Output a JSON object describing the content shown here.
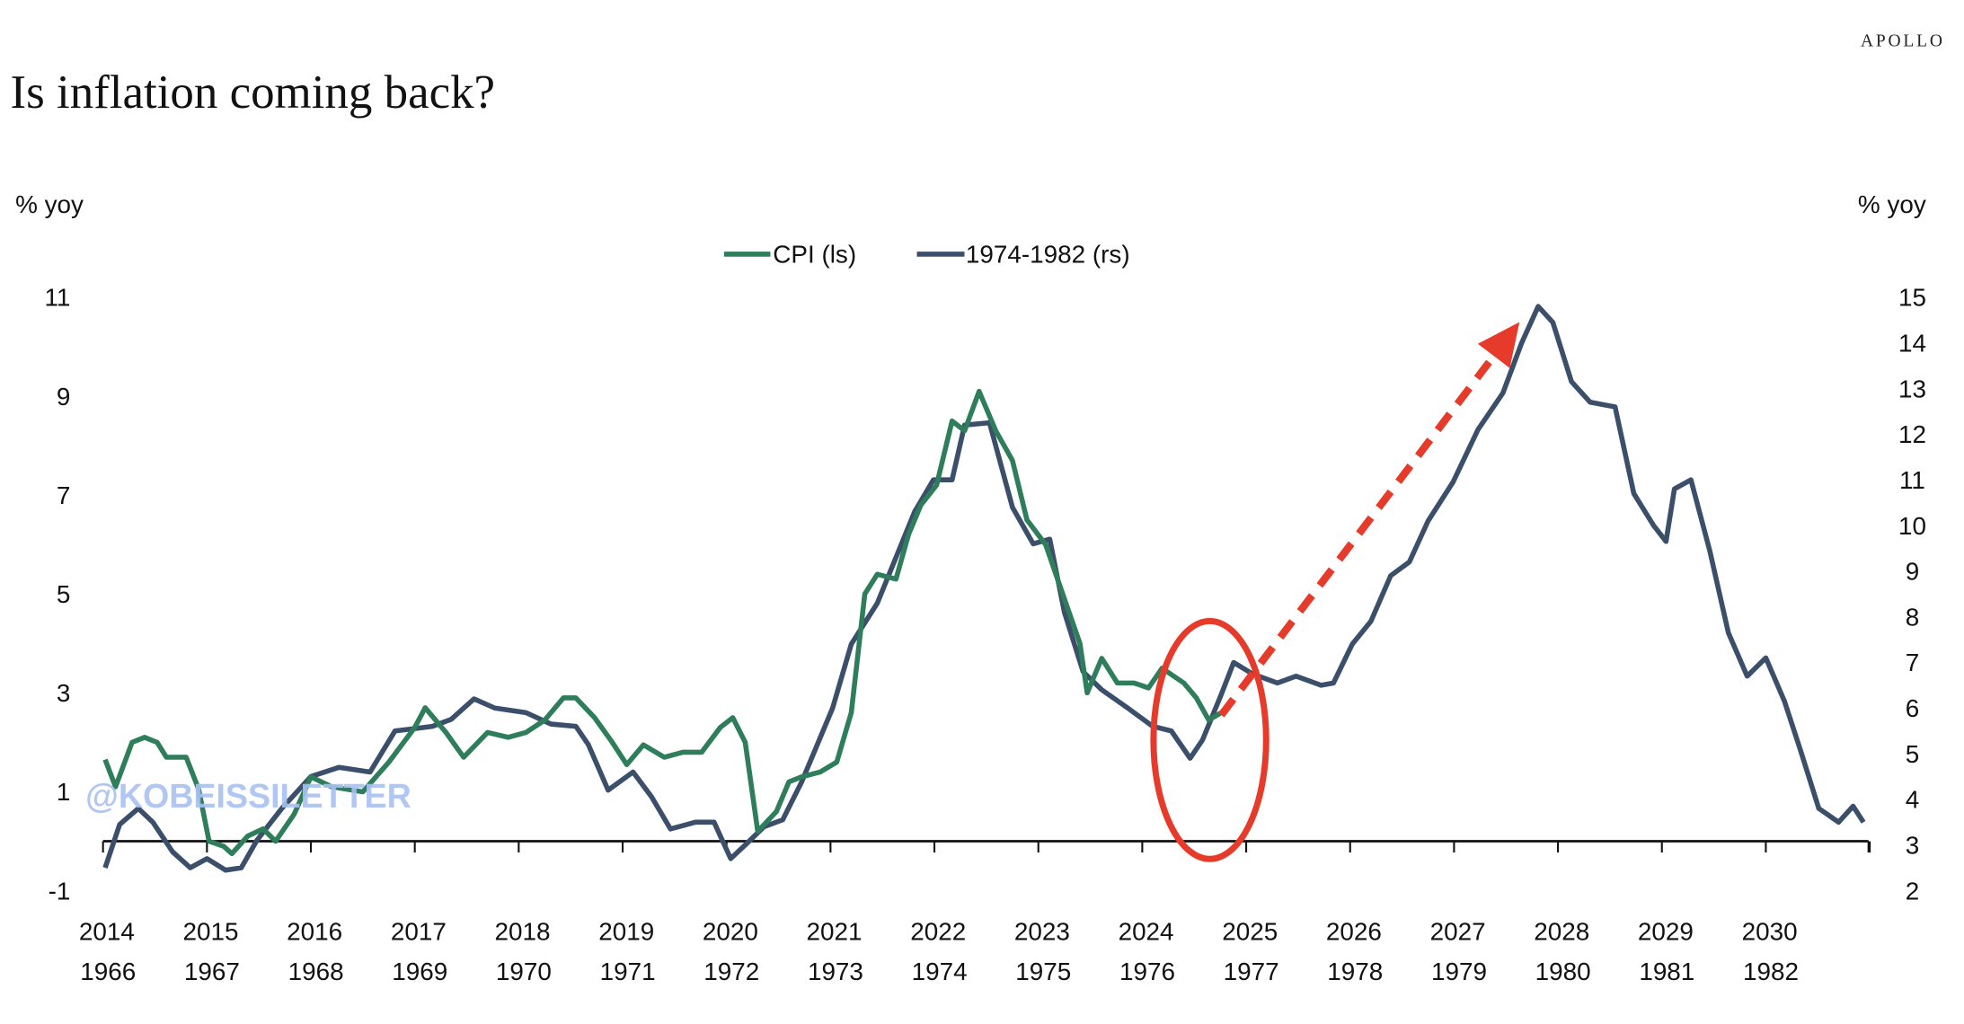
{
  "brand": "APOLLO",
  "watermark": "@KOBEISSILETTER",
  "colors": {
    "cpi": "#2e7d5b",
    "hist": "#3b4f6b",
    "annotation": "#e63b2a",
    "watermark": "#a9c1f2"
  },
  "chart_data": {
    "type": "line",
    "title": "Is inflation coming back?",
    "ylabel_left": "% yoy",
    "ylabel_right": "% yoy",
    "legend_position": "top-center",
    "ylim_left": [
      -1,
      11
    ],
    "ylim_right": [
      2,
      15
    ],
    "yticks_left": [
      "11",
      "9",
      "7",
      "5",
      "3",
      "1",
      "-1"
    ],
    "yticks_left_values": [
      11,
      9,
      7,
      5,
      3,
      1,
      -1
    ],
    "yticks_right": [
      "15",
      "14",
      "13",
      "12",
      "11",
      "10",
      "9",
      "8",
      "7",
      "6",
      "5",
      "4",
      "3",
      "2"
    ],
    "yticks_right_values": [
      15,
      14,
      13,
      12,
      11,
      10,
      9,
      8,
      7,
      6,
      5,
      4,
      3,
      2
    ],
    "xticks_top": [
      "2014",
      "2015",
      "2016",
      "2017",
      "2018",
      "2019",
      "2020",
      "2021",
      "2022",
      "2023",
      "2024",
      "2025",
      "2026",
      "2027",
      "2028",
      "2029",
      "2030"
    ],
    "xticks_bottom": [
      "1966",
      "1967",
      "1968",
      "1969",
      "1970",
      "1971",
      "1972",
      "1973",
      "1974",
      "1975",
      "1976",
      "1977",
      "1978",
      "1979",
      "1980",
      "1981",
      "1982"
    ],
    "series": [
      {
        "name": "CPI (ls)",
        "axis": "left",
        "points": [
          [
            2014.02,
            1.65
          ],
          [
            2014.12,
            1.1
          ],
          [
            2014.28,
            2.0
          ],
          [
            2014.4,
            2.1
          ],
          [
            2014.52,
            2.0
          ],
          [
            2014.61,
            1.7
          ],
          [
            2014.8,
            1.7
          ],
          [
            2014.92,
            1.05
          ],
          [
            2015.02,
            0.0
          ],
          [
            2015.16,
            -0.1
          ],
          [
            2015.24,
            -0.25
          ],
          [
            2015.39,
            0.1
          ],
          [
            2015.54,
            0.25
          ],
          [
            2015.66,
            0.0
          ],
          [
            2015.84,
            0.55
          ],
          [
            2016.0,
            1.3
          ],
          [
            2016.2,
            1.1
          ],
          [
            2016.5,
            1.0
          ],
          [
            2016.75,
            1.6
          ],
          [
            2017.0,
            2.3
          ],
          [
            2017.1,
            2.7
          ],
          [
            2017.3,
            2.2
          ],
          [
            2017.47,
            1.7
          ],
          [
            2017.7,
            2.2
          ],
          [
            2017.9,
            2.1
          ],
          [
            2018.07,
            2.2
          ],
          [
            2018.25,
            2.45
          ],
          [
            2018.43,
            2.9
          ],
          [
            2018.55,
            2.9
          ],
          [
            2018.73,
            2.5
          ],
          [
            2018.9,
            2.0
          ],
          [
            2019.04,
            1.55
          ],
          [
            2019.2,
            1.95
          ],
          [
            2019.4,
            1.7
          ],
          [
            2019.58,
            1.8
          ],
          [
            2019.76,
            1.8
          ],
          [
            2019.94,
            2.3
          ],
          [
            2020.06,
            2.5
          ],
          [
            2020.18,
            2.0
          ],
          [
            2020.3,
            0.2
          ],
          [
            2020.48,
            0.6
          ],
          [
            2020.6,
            1.2
          ],
          [
            2020.72,
            1.3
          ],
          [
            2020.9,
            1.4
          ],
          [
            2021.06,
            1.6
          ],
          [
            2021.2,
            2.6
          ],
          [
            2021.33,
            5.0
          ],
          [
            2021.45,
            5.4
          ],
          [
            2021.63,
            5.3
          ],
          [
            2021.75,
            6.2
          ],
          [
            2021.87,
            6.8
          ],
          [
            2022.02,
            7.2
          ],
          [
            2022.17,
            8.5
          ],
          [
            2022.29,
            8.3
          ],
          [
            2022.43,
            9.1
          ],
          [
            2022.59,
            8.3
          ],
          [
            2022.75,
            7.7
          ],
          [
            2022.89,
            6.5
          ],
          [
            2023.07,
            6.0
          ],
          [
            2023.25,
            4.9
          ],
          [
            2023.4,
            4.0
          ],
          [
            2023.47,
            3.0
          ],
          [
            2023.61,
            3.7
          ],
          [
            2023.76,
            3.2
          ],
          [
            2023.92,
            3.2
          ],
          [
            2024.06,
            3.1
          ],
          [
            2024.19,
            3.5
          ],
          [
            2024.4,
            3.2
          ],
          [
            2024.52,
            2.9
          ],
          [
            2024.64,
            2.45
          ],
          [
            2024.76,
            2.6
          ]
        ]
      },
      {
        "name": "1974-1982 (rs)",
        "axis": "right",
        "points": [
          [
            2014.02,
            2.5
          ],
          [
            2014.16,
            3.45
          ],
          [
            2014.34,
            3.8
          ],
          [
            2014.48,
            3.5
          ],
          [
            2014.67,
            2.85
          ],
          [
            2014.84,
            2.5
          ],
          [
            2015.0,
            2.7
          ],
          [
            2015.18,
            2.45
          ],
          [
            2015.33,
            2.5
          ],
          [
            2015.48,
            3.1
          ],
          [
            2015.72,
            3.8
          ],
          [
            2016.0,
            4.5
          ],
          [
            2016.27,
            4.7
          ],
          [
            2016.57,
            4.6
          ],
          [
            2016.81,
            5.5
          ],
          [
            2017.0,
            5.55
          ],
          [
            2017.17,
            5.6
          ],
          [
            2017.35,
            5.75
          ],
          [
            2017.57,
            6.2
          ],
          [
            2017.77,
            6.0
          ],
          [
            2018.07,
            5.9
          ],
          [
            2018.31,
            5.65
          ],
          [
            2018.55,
            5.6
          ],
          [
            2018.67,
            5.2
          ],
          [
            2018.86,
            4.2
          ],
          [
            2019.1,
            4.6
          ],
          [
            2019.28,
            4.05
          ],
          [
            2019.46,
            3.35
          ],
          [
            2019.7,
            3.5
          ],
          [
            2019.88,
            3.5
          ],
          [
            2020.04,
            2.7
          ],
          [
            2020.18,
            3.0
          ],
          [
            2020.36,
            3.4
          ],
          [
            2020.54,
            3.55
          ],
          [
            2020.72,
            4.37
          ],
          [
            2021.02,
            6.0
          ],
          [
            2021.2,
            7.4
          ],
          [
            2021.45,
            8.3
          ],
          [
            2021.63,
            9.3
          ],
          [
            2021.81,
            10.3
          ],
          [
            2021.99,
            11.0
          ],
          [
            2022.17,
            11.0
          ],
          [
            2022.29,
            12.2
          ],
          [
            2022.53,
            12.25
          ],
          [
            2022.75,
            10.4
          ],
          [
            2022.95,
            9.6
          ],
          [
            2023.11,
            9.7
          ],
          [
            2023.25,
            8.1
          ],
          [
            2023.43,
            6.8
          ],
          [
            2023.61,
            6.4
          ],
          [
            2023.86,
            6.0
          ],
          [
            2024.1,
            5.6
          ],
          [
            2024.28,
            5.5
          ],
          [
            2024.46,
            4.9
          ],
          [
            2024.58,
            5.3
          ],
          [
            2024.76,
            6.3
          ],
          [
            2024.88,
            7.0
          ],
          [
            2025.06,
            6.75
          ],
          [
            2025.3,
            6.55
          ],
          [
            2025.48,
            6.7
          ],
          [
            2025.72,
            6.5
          ],
          [
            2025.84,
            6.55
          ],
          [
            2026.02,
            7.4
          ],
          [
            2026.2,
            7.9
          ],
          [
            2026.39,
            8.9
          ],
          [
            2026.57,
            9.2
          ],
          [
            2026.75,
            10.1
          ],
          [
            2026.99,
            10.95
          ],
          [
            2027.23,
            12.1
          ],
          [
            2027.47,
            12.9
          ],
          [
            2027.65,
            14.0
          ],
          [
            2027.81,
            14.8
          ],
          [
            2027.95,
            14.45
          ],
          [
            2028.13,
            13.15
          ],
          [
            2028.31,
            12.7
          ],
          [
            2028.55,
            12.6
          ],
          [
            2028.73,
            10.7
          ],
          [
            2028.92,
            10.0
          ],
          [
            2029.04,
            9.65
          ],
          [
            2029.12,
            10.8
          ],
          [
            2029.28,
            11.0
          ],
          [
            2029.46,
            9.45
          ],
          [
            2029.64,
            7.65
          ],
          [
            2029.82,
            6.7
          ],
          [
            2030.0,
            7.1
          ],
          [
            2030.18,
            6.15
          ],
          [
            2030.33,
            5.1
          ],
          [
            2030.51,
            3.8
          ],
          [
            2030.7,
            3.5
          ],
          [
            2030.84,
            3.85
          ],
          [
            2030.94,
            3.5
          ]
        ]
      }
    ],
    "annotations": [
      {
        "type": "ellipse",
        "around": [
          2024.65,
          5.3
        ],
        "axis": "right"
      },
      {
        "type": "dashed-arrow",
        "from": [
          2024.76,
          2.55
        ],
        "to": [
          2027.63,
          10.5
        ],
        "axis": "left"
      }
    ]
  }
}
